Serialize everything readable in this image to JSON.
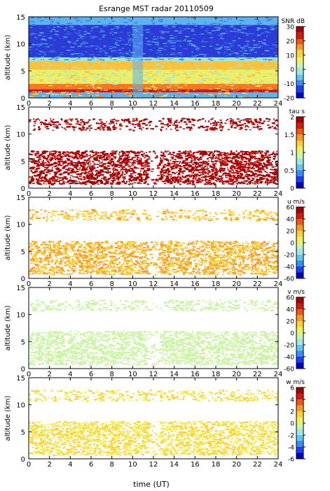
{
  "figure": {
    "title": "Esrange MST radar 20110509",
    "xlabel": "time (UT)",
    "x_ticks": [
      "0",
      "2",
      "4",
      "6",
      "8",
      "10",
      "12",
      "14",
      "16",
      "18",
      "20",
      "22",
      "24"
    ]
  },
  "chart_data": [
    {
      "type": "heatmap",
      "ylabel": "altitude (km)",
      "colorbar_label": "SNR dB",
      "xlim": [
        0,
        24
      ],
      "ylim": [
        0,
        15
      ],
      "y_ticks": [
        "0",
        "5",
        "10",
        "15"
      ],
      "clim": [
        -20,
        30
      ],
      "colorbar_ticks": [
        "30",
        "20",
        "10",
        "0",
        "-10",
        "-20"
      ],
      "colormap": "jet-continuous",
      "background": "full-coverage",
      "colors": [
        "#2a3bd6",
        "#3b6fe8",
        "#5db3ee",
        "#9de6df",
        "#e9ef6a",
        "#f9c23c",
        "#f47a20",
        "#d01818"
      ]
    },
    {
      "type": "heatmap",
      "ylabel": "altitude (km)",
      "colorbar_label": "tau s",
      "xlim": [
        0,
        24
      ],
      "ylim": [
        0,
        15
      ],
      "y_ticks": [
        "0",
        "5",
        "10",
        "15"
      ],
      "clim": [
        0,
        2
      ],
      "colorbar_ticks": [
        "2",
        "1.5",
        "1",
        "0.5",
        "0"
      ],
      "colormap": "jet-discrete",
      "layers": [
        {
          "bottom_km": 0.8,
          "top_km": 7.0,
          "value": 1.9,
          "density": 0.9
        },
        {
          "bottom_km": 10.8,
          "top_km": 13.0,
          "value": 1.9,
          "density": 0.45
        }
      ]
    },
    {
      "type": "heatmap",
      "ylabel": "altitude (km)",
      "colorbar_label": "u m/s",
      "xlim": [
        0,
        24
      ],
      "ylim": [
        0,
        15
      ],
      "y_ticks": [
        "0",
        "5",
        "10",
        "15"
      ],
      "clim": [
        -60,
        60
      ],
      "colorbar_ticks": [
        "60",
        "40",
        "20",
        "0",
        "-20",
        "-40",
        "-60"
      ],
      "colormap": "jet-discrete",
      "layers": [
        {
          "bottom_km": 0.8,
          "top_km": 7.0,
          "value": 20,
          "density": 0.85
        },
        {
          "bottom_km": 10.8,
          "top_km": 12.8,
          "value": 18,
          "density": 0.45
        }
      ]
    },
    {
      "type": "heatmap",
      "ylabel": "altitude (km)",
      "colorbar_label": "v m/s",
      "xlim": [
        0,
        24
      ],
      "ylim": [
        0,
        15
      ],
      "y_ticks": [
        "0",
        "5",
        "10",
        "15"
      ],
      "clim": [
        -60,
        60
      ],
      "colorbar_ticks": [
        "60",
        "40",
        "20",
        "0",
        "-20",
        "-40",
        "-60"
      ],
      "colormap": "jet-discrete",
      "layers": [
        {
          "bottom_km": 0.8,
          "top_km": 7.0,
          "value": -5,
          "density": 0.85
        },
        {
          "bottom_km": 10.8,
          "top_km": 12.8,
          "value": -5,
          "density": 0.45
        }
      ]
    },
    {
      "type": "heatmap",
      "ylabel": "altitude (km)",
      "colorbar_label": "w m/s",
      "xlim": [
        0,
        24
      ],
      "ylim": [
        0,
        15
      ],
      "y_ticks": [
        "0",
        "5",
        "10",
        "15"
      ],
      "clim": [
        -6,
        6
      ],
      "colorbar_ticks": [
        "6",
        "4",
        "2",
        "0",
        "-2",
        "-4",
        "-6"
      ],
      "colormap": "jet-discrete",
      "layers": [
        {
          "bottom_km": 0.8,
          "top_km": 7.0,
          "value": 1.0,
          "density": 0.85
        },
        {
          "bottom_km": 10.8,
          "top_km": 12.8,
          "value": 1.0,
          "density": 0.45
        }
      ]
    }
  ]
}
